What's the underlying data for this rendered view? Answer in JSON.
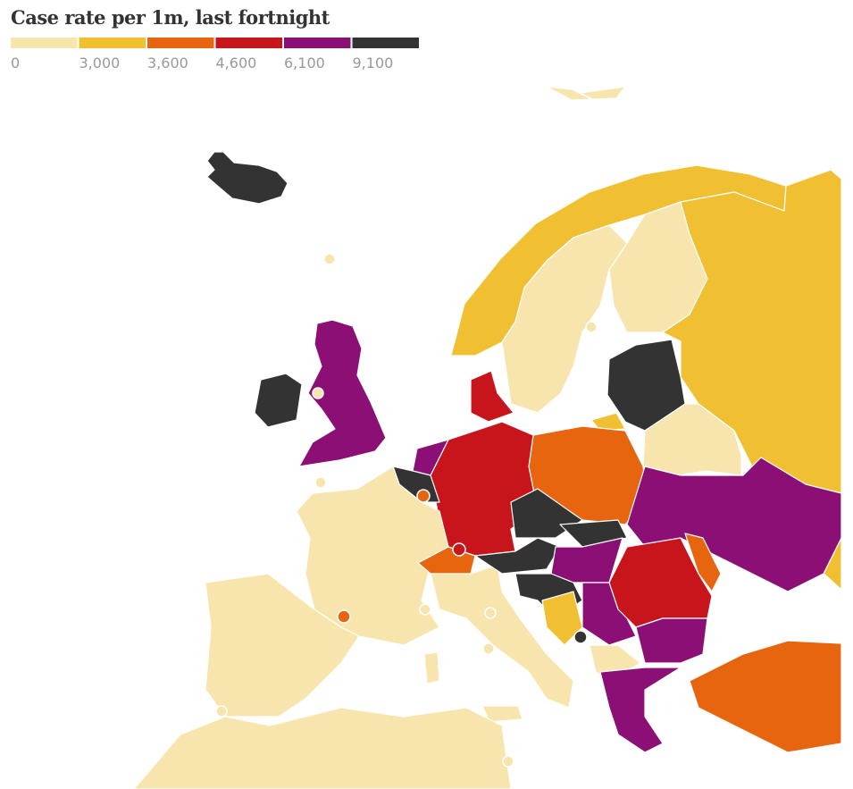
{
  "title": "Case rate per 1m, last fortnight",
  "legend": {
    "colors": [
      "#f8e5ad",
      "#f0c032",
      "#e8650f",
      "#c8141b",
      "#8b0f75",
      "#333333"
    ],
    "ticks": [
      0,
      {
        "value": 3000,
        "label": "3,000"
      },
      {
        "value": 3600,
        "label": "3,600"
      },
      {
        "value": 4600,
        "label": "4,600"
      },
      {
        "value": 6100,
        "label": "6,100"
      },
      {
        "value": 9100,
        "label": "9,100"
      }
    ]
  }
}
